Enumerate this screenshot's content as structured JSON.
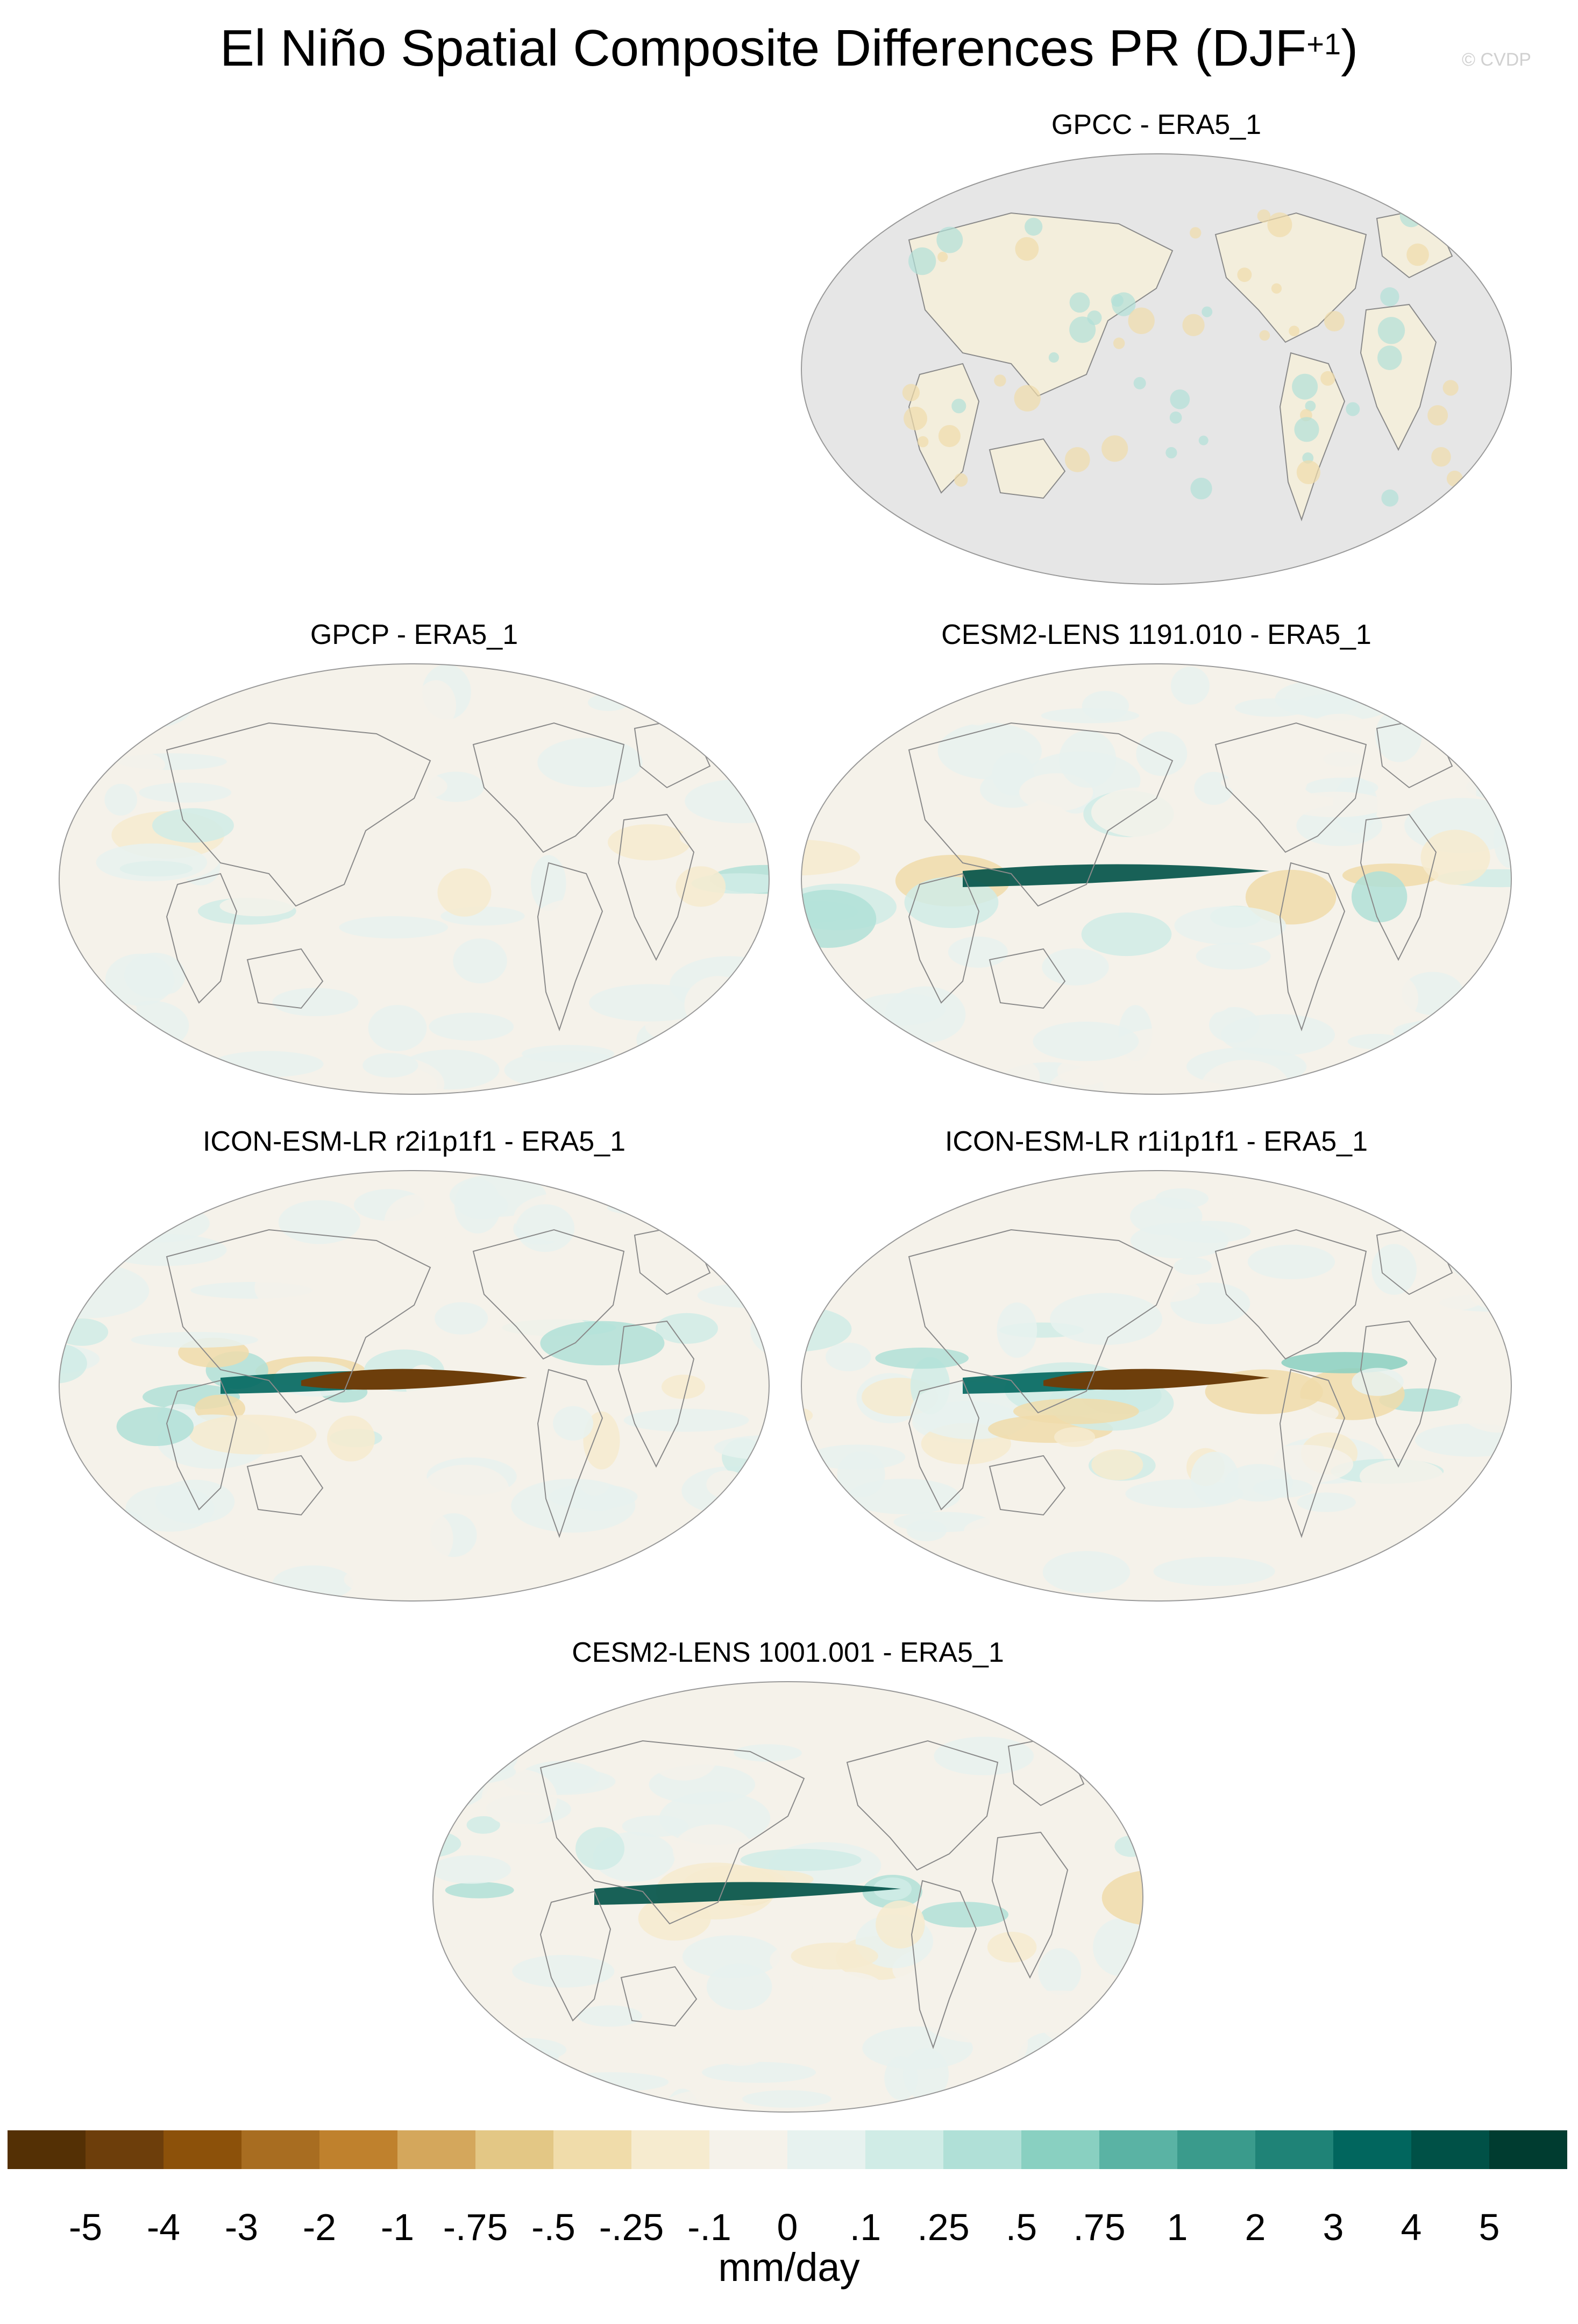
{
  "figure": {
    "title_main": "El Niño Spatial Composite Differences PR (DJF",
    "title_sup": "+1",
    "title_close": ")",
    "watermark": "© CVDP"
  },
  "panels": [
    {
      "title": "GPCC - ERA5_1",
      "land_only": true
    },
    {
      "title": "GPCP - ERA5_1",
      "land_only": false
    },
    {
      "title": "CESM2-LENS 1191.010 - ERA5_1",
      "land_only": false
    },
    {
      "title": "ICON-ESM-LR r2i1p1f1 - ERA5_1",
      "land_only": false
    },
    {
      "title": "ICON-ESM-LR r1i1p1f1 - ERA5_1",
      "land_only": false
    },
    {
      "title": "CESM2-LENS 1001.001 - ERA5_1",
      "land_only": false
    }
  ],
  "colorbar": {
    "colors": [
      "#543005",
      "#6d3e0b",
      "#8c510a",
      "#a86d21",
      "#bf812d",
      "#d4a75c",
      "#e3c785",
      "#f0dcaa",
      "#f6ebcf",
      "#f5f2ea",
      "#e7f2ef",
      "#d0ece6",
      "#b0e0d7",
      "#89d0c1",
      "#5ab3a4",
      "#3a9b8c",
      "#1f8377",
      "#01665e",
      "#005147",
      "#003c30"
    ],
    "labels": [
      "-5",
      "-4",
      "-3",
      "-2",
      "-1",
      "-.75",
      "-.5",
      "-.25",
      "-.1",
      "0",
      ".1",
      ".25",
      ".5",
      ".75",
      "1",
      "2",
      "3",
      "4",
      "5"
    ],
    "units": "mm/day"
  },
  "map_style": {
    "missing": "#e6e6e6",
    "coast": "#8a8a8a",
    "outline": "#999999"
  }
}
